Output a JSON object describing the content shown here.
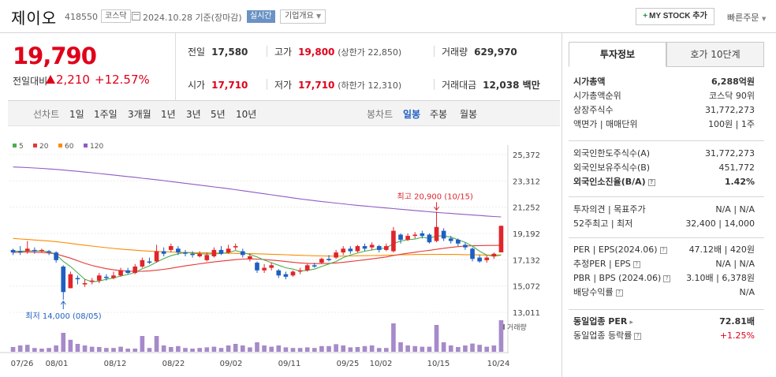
{
  "header": {
    "name": "제이오",
    "code": "418550",
    "market": "코스닥",
    "date": "2024.10.28 기준(장마감)",
    "realtime": "실시간",
    "overview": "기업개요",
    "mystock_label": "MY STOCK 추가",
    "mystock_plus": "+",
    "quick_order": "빠른주문"
  },
  "price": {
    "current": "19,790",
    "diff_label": "전일대비",
    "diff_value": "2,210",
    "diff_rate": "+12.57%",
    "up_color": "#e0001a"
  },
  "quote": {
    "prev_label": "전일",
    "prev": "17,580",
    "high_label": "고가",
    "high": "19,800",
    "upper_limit": "(상한가 22,850)",
    "volume_label": "거래량",
    "volume": "629,970",
    "open_label": "시가",
    "open": "17,710",
    "low_label": "저가",
    "low": "17,710",
    "lower_limit": "(하한가 12,310)",
    "amount_label": "거래대금",
    "amount": "12,038 백만"
  },
  "periods": {
    "line_label": "선차트",
    "line": [
      "1일",
      "1주일",
      "3개월",
      "1년",
      "3년",
      "5년",
      "10년"
    ],
    "candle_label": "봉차트",
    "candle": [
      "일봉",
      "주봉",
      "월봉"
    ],
    "active_candle": "일봉"
  },
  "chart_data": {
    "type": "candlestick",
    "legend": [
      {
        "label": "5",
        "color": "#4caf50"
      },
      {
        "label": "20",
        "color": "#e53935"
      },
      {
        "label": "60",
        "color": "#fb8c00"
      },
      {
        "label": "120",
        "color": "#8e5bc4"
      }
    ],
    "y_ticks": [
      "25,372",
      "23,312",
      "21,252",
      "19,192",
      "17,132",
      "15,072",
      "13,011"
    ],
    "ylim": [
      13011,
      25372
    ],
    "x_ticks": [
      "07/26",
      "08/01",
      "08/12",
      "08/22",
      "09/02",
      "09/11",
      "09/25",
      "10/02",
      "10/15",
      "10/24"
    ],
    "annot_high": "최고 20,900 (10/15)",
    "annot_low": "최저 14,000 (08/05)",
    "volume_label": "거래량",
    "candles": [
      {
        "o": 17900,
        "c": 17700,
        "h": 18000,
        "l": 17500,
        "v": 0.15
      },
      {
        "o": 17800,
        "c": 17700,
        "h": 18200,
        "l": 17500,
        "v": 0.2
      },
      {
        "o": 17800,
        "c": 18000,
        "h": 18600,
        "l": 17600,
        "v": 0.22
      },
      {
        "o": 17900,
        "c": 17800,
        "h": 18100,
        "l": 17600,
        "v": 0.12
      },
      {
        "o": 17800,
        "c": 17900,
        "h": 18000,
        "l": 17700,
        "v": 0.1
      },
      {
        "o": 17800,
        "c": 17700,
        "h": 17900,
        "l": 17500,
        "v": 0.12
      },
      {
        "o": 17700,
        "c": 17100,
        "h": 17800,
        "l": 16900,
        "v": 0.2
      },
      {
        "o": 16600,
        "c": 14600,
        "h": 16700,
        "l": 14000,
        "v": 0.6
      },
      {
        "o": 14900,
        "c": 16000,
        "h": 16200,
        "l": 14900,
        "v": 0.38
      },
      {
        "o": 15700,
        "c": 15600,
        "h": 15900,
        "l": 15200,
        "v": 0.25
      },
      {
        "o": 15200,
        "c": 15300,
        "h": 15600,
        "l": 15000,
        "v": 0.2
      },
      {
        "o": 15400,
        "c": 15500,
        "h": 15700,
        "l": 15200,
        "v": 0.16
      },
      {
        "o": 15500,
        "c": 15900,
        "h": 16100,
        "l": 15300,
        "v": 0.15
      },
      {
        "o": 15800,
        "c": 15700,
        "h": 16000,
        "l": 15500,
        "v": 0.12
      },
      {
        "o": 15700,
        "c": 15900,
        "h": 16200,
        "l": 15600,
        "v": 0.12
      },
      {
        "o": 15900,
        "c": 16300,
        "h": 16500,
        "l": 15800,
        "v": 0.16
      },
      {
        "o": 16300,
        "c": 16100,
        "h": 16500,
        "l": 16000,
        "v": 0.1
      },
      {
        "o": 16100,
        "c": 16600,
        "h": 16800,
        "l": 16000,
        "v": 0.1
      },
      {
        "o": 16600,
        "c": 17100,
        "h": 17300,
        "l": 16500,
        "v": 0.5
      },
      {
        "o": 17000,
        "c": 16900,
        "h": 17300,
        "l": 16800,
        "v": 0.12
      },
      {
        "o": 17000,
        "c": 17800,
        "h": 18300,
        "l": 16900,
        "v": 0.5
      },
      {
        "o": 17800,
        "c": 17600,
        "h": 18100,
        "l": 17400,
        "v": 0.2
      },
      {
        "o": 17900,
        "c": 18200,
        "h": 18400,
        "l": 17700,
        "v": 0.15
      },
      {
        "o": 18000,
        "c": 17700,
        "h": 18200,
        "l": 17500,
        "v": 0.18
      },
      {
        "o": 17700,
        "c": 17600,
        "h": 17900,
        "l": 17400,
        "v": 0.12
      },
      {
        "o": 17600,
        "c": 17500,
        "h": 17800,
        "l": 17300,
        "v": 0.1
      },
      {
        "o": 17400,
        "c": 17600,
        "h": 17800,
        "l": 17300,
        "v": 0.12
      },
      {
        "o": 17100,
        "c": 17500,
        "h": 17700,
        "l": 17000,
        "v": 0.14
      },
      {
        "o": 17400,
        "c": 17900,
        "h": 18100,
        "l": 17300,
        "v": 0.16
      },
      {
        "o": 17900,
        "c": 17600,
        "h": 18200,
        "l": 17500,
        "v": 0.12
      },
      {
        "o": 17700,
        "c": 18000,
        "h": 18300,
        "l": 17600,
        "v": 0.2
      },
      {
        "o": 18100,
        "c": 18200,
        "h": 18400,
        "l": 17900,
        "v": 0.25
      },
      {
        "o": 17800,
        "c": 17500,
        "h": 18000,
        "l": 17300,
        "v": 0.2
      },
      {
        "o": 17200,
        "c": 17400,
        "h": 17600,
        "l": 17000,
        "v": 0.14
      },
      {
        "o": 16900,
        "c": 16300,
        "h": 17000,
        "l": 16100,
        "v": 0.3
      },
      {
        "o": 16300,
        "c": 16500,
        "h": 16800,
        "l": 16100,
        "v": 0.2
      },
      {
        "o": 16500,
        "c": 16700,
        "h": 16900,
        "l": 16300,
        "v": 0.16
      },
      {
        "o": 16300,
        "c": 15900,
        "h": 16400,
        "l": 15700,
        "v": 0.2
      },
      {
        "o": 16000,
        "c": 15800,
        "h": 16200,
        "l": 15600,
        "v": 0.14
      },
      {
        "o": 15900,
        "c": 16200,
        "h": 16300,
        "l": 15800,
        "v": 0.12
      },
      {
        "o": 16200,
        "c": 16300,
        "h": 16500,
        "l": 16000,
        "v": 0.12
      },
      {
        "o": 16300,
        "c": 16700,
        "h": 16800,
        "l": 16200,
        "v": 0.14
      },
      {
        "o": 16700,
        "c": 16600,
        "h": 16900,
        "l": 16500,
        "v": 0.12
      },
      {
        "o": 16900,
        "c": 17200,
        "h": 17300,
        "l": 16800,
        "v": 0.18
      },
      {
        "o": 17200,
        "c": 17100,
        "h": 17500,
        "l": 17000,
        "v": 0.18
      },
      {
        "o": 17300,
        "c": 17700,
        "h": 17900,
        "l": 17200,
        "v": 0.24
      },
      {
        "o": 17700,
        "c": 18000,
        "h": 18200,
        "l": 17500,
        "v": 0.2
      },
      {
        "o": 18000,
        "c": 17800,
        "h": 18200,
        "l": 17600,
        "v": 0.14
      },
      {
        "o": 17800,
        "c": 18200,
        "h": 18300,
        "l": 17700,
        "v": 0.15
      },
      {
        "o": 18200,
        "c": 18000,
        "h": 18400,
        "l": 17800,
        "v": 0.18
      },
      {
        "o": 18100,
        "c": 18300,
        "h": 18500,
        "l": 17900,
        "v": 0.2
      },
      {
        "o": 18200,
        "c": 17900,
        "h": 18300,
        "l": 17700,
        "v": 0.12
      },
      {
        "o": 17900,
        "c": 18200,
        "h": 18400,
        "l": 17800,
        "v": 0.12
      },
      {
        "o": 17800,
        "c": 19400,
        "h": 19700,
        "l": 17700,
        "v": 0.9
      },
      {
        "o": 19100,
        "c": 18700,
        "h": 19200,
        "l": 18400,
        "v": 0.3
      },
      {
        "o": 18700,
        "c": 19000,
        "h": 19200,
        "l": 18600,
        "v": 0.2
      },
      {
        "o": 19000,
        "c": 19100,
        "h": 19300,
        "l": 18800,
        "v": 0.18
      },
      {
        "o": 19200,
        "c": 19000,
        "h": 19400,
        "l": 18800,
        "v": 0.16
      },
      {
        "o": 19100,
        "c": 18500,
        "h": 19200,
        "l": 18400,
        "v": 0.16
      },
      {
        "o": 18600,
        "c": 19700,
        "h": 20900,
        "l": 18500,
        "v": 0.85
      },
      {
        "o": 19400,
        "c": 18800,
        "h": 19600,
        "l": 18600,
        "v": 0.3
      },
      {
        "o": 18800,
        "c": 18600,
        "h": 19000,
        "l": 18400,
        "v": 0.2
      },
      {
        "o": 18700,
        "c": 18400,
        "h": 18800,
        "l": 18200,
        "v": 0.15
      },
      {
        "o": 18300,
        "c": 18100,
        "h": 18500,
        "l": 17900,
        "v": 0.2
      },
      {
        "o": 18000,
        "c": 17200,
        "h": 18100,
        "l": 17000,
        "v": 0.26
      },
      {
        "o": 17300,
        "c": 17000,
        "h": 17500,
        "l": 16900,
        "v": 0.22
      },
      {
        "o": 17100,
        "c": 17300,
        "h": 17500,
        "l": 16900,
        "v": 0.16
      },
      {
        "o": 17400,
        "c": 17600,
        "h": 17700,
        "l": 17200,
        "v": 0.2
      },
      {
        "o": 17710,
        "c": 19790,
        "h": 19800,
        "l": 17710,
        "v": 1.0
      }
    ],
    "ma5": [
      17800,
      17800,
      17820,
      17840,
      17820,
      17760,
      17540,
      17000,
      16600,
      16100,
      15600,
      15400,
      15460,
      15600,
      15700,
      15860,
      15980,
      16140,
      16420,
      16650,
      16950,
      17220,
      17450,
      17600,
      17700,
      17650,
      17600,
      17580,
      17600,
      17620,
      17700,
      17850,
      17700,
      17550,
      17350,
      17100,
      16900,
      16700,
      16500,
      16400,
      16250,
      16300,
      16400,
      16600,
      16800,
      17000,
      17300,
      17500,
      17650,
      17800,
      17900,
      18000,
      18050,
      18400,
      18600,
      18700,
      18750,
      18900,
      18800,
      19000,
      19000,
      18900,
      18700,
      18500,
      18200,
      17800,
      17500,
      17400,
      17500
    ],
    "ma20": [
      17700,
      17720,
      17740,
      17720,
      17700,
      17660,
      17580,
      17420,
      17260,
      17050,
      16850,
      16680,
      16550,
      16430,
      16340,
      16280,
      16240,
      16220,
      16230,
      16260,
      16310,
      16380,
      16460,
      16560,
      16650,
      16730,
      16810,
      16890,
      16960,
      17020,
      17080,
      17140,
      17180,
      17200,
      17180,
      17150,
      17100,
      17050,
      16990,
      16930,
      16880,
      16850,
      16830,
      16830,
      16850,
      16880,
      16930,
      16990,
      17060,
      17130,
      17200,
      17270,
      17350,
      17460,
      17560,
      17640,
      17720,
      17800,
      17870,
      17950,
      18030,
      18100,
      18160,
      18200,
      18230,
      18240,
      18250,
      18250,
      18260
    ],
    "ma60": [
      18800,
      18760,
      18720,
      18680,
      18640,
      18600,
      18550,
      18480,
      18410,
      18340,
      18270,
      18200,
      18140,
      18080,
      18020,
      17970,
      17920,
      17880,
      17840,
      17810,
      17780,
      17760,
      17740,
      17720,
      17700,
      17690,
      17680,
      17670,
      17660,
      17650,
      17640,
      17630,
      17620,
      17610,
      17600,
      17580,
      17560,
      17540,
      17520,
      17500,
      17480,
      17460,
      17440,
      17430,
      17420,
      17420,
      17420,
      17430,
      17440,
      17450,
      17460,
      17470,
      17480,
      17500,
      17520,
      17530,
      17540,
      17550,
      17550,
      17550,
      17550,
      17550,
      17540,
      17530,
      17520,
      17510,
      17500,
      17500,
      17510
    ],
    "ma120": [
      24400,
      24380,
      24350,
      24320,
      24290,
      24250,
      24210,
      24160,
      24110,
      24060,
      24000,
      23950,
      23890,
      23830,
      23770,
      23710,
      23650,
      23590,
      23520,
      23460,
      23400,
      23330,
      23260,
      23190,
      23120,
      23050,
      22980,
      22910,
      22840,
      22770,
      22700,
      22620,
      22540,
      22460,
      22380,
      22300,
      22220,
      22140,
      22060,
      21980,
      21900,
      21830,
      21760,
      21690,
      21630,
      21570,
      21510,
      21450,
      21390,
      21340,
      21290,
      21240,
      21190,
      21140,
      21090,
      21040,
      20990,
      20940,
      20890,
      20840,
      20800,
      20760,
      20720,
      20680,
      20640,
      20600,
      20560,
      20520,
      20490
    ]
  },
  "panel": {
    "tab_active": "투자정보",
    "tab_inactive": "호가 10단계",
    "group1": [
      {
        "k": "시가총액",
        "v": "6,288억원",
        "bold": true
      },
      {
        "k": "시가총액순위",
        "v": "코스닥 90위"
      },
      {
        "k": "상장주식수",
        "v": "31,772,273"
      },
      {
        "k": "액면가 | 매매단위",
        "v": "100원 | 1주"
      }
    ],
    "group2": [
      {
        "k": "외국인한도주식수(A)",
        "v": "31,772,273"
      },
      {
        "k": "외국인보유주식수(B)",
        "v": "451,772"
      },
      {
        "k": "외국인소진율(B/A)",
        "v": "1.42%",
        "bold": true,
        "q": true
      }
    ],
    "group3": [
      {
        "k": "투자의견 | 목표주가",
        "v": "N/A | N/A"
      },
      {
        "k": "52주최고 | 최저",
        "v": "32,400 | 14,000"
      }
    ],
    "group4": [
      {
        "k": "PER | EPS(2024.06)",
        "v": "47.12배 | 420원",
        "q": true
      },
      {
        "k": "추정PER | EPS",
        "v": "N/A | N/A",
        "q": true
      },
      {
        "k": "PBR | BPS (2024.06)",
        "v": "3.10배 | 6,378원",
        "q": true
      },
      {
        "k": "배당수익률",
        "v": "N/A",
        "q": true
      }
    ],
    "group5": [
      {
        "k": "동일업종 PER",
        "v": "72.81배",
        "bold": true,
        "arrow": true
      },
      {
        "k": "동일업종 등락률",
        "v": "+1.25%",
        "red": true,
        "q": true
      }
    ]
  }
}
